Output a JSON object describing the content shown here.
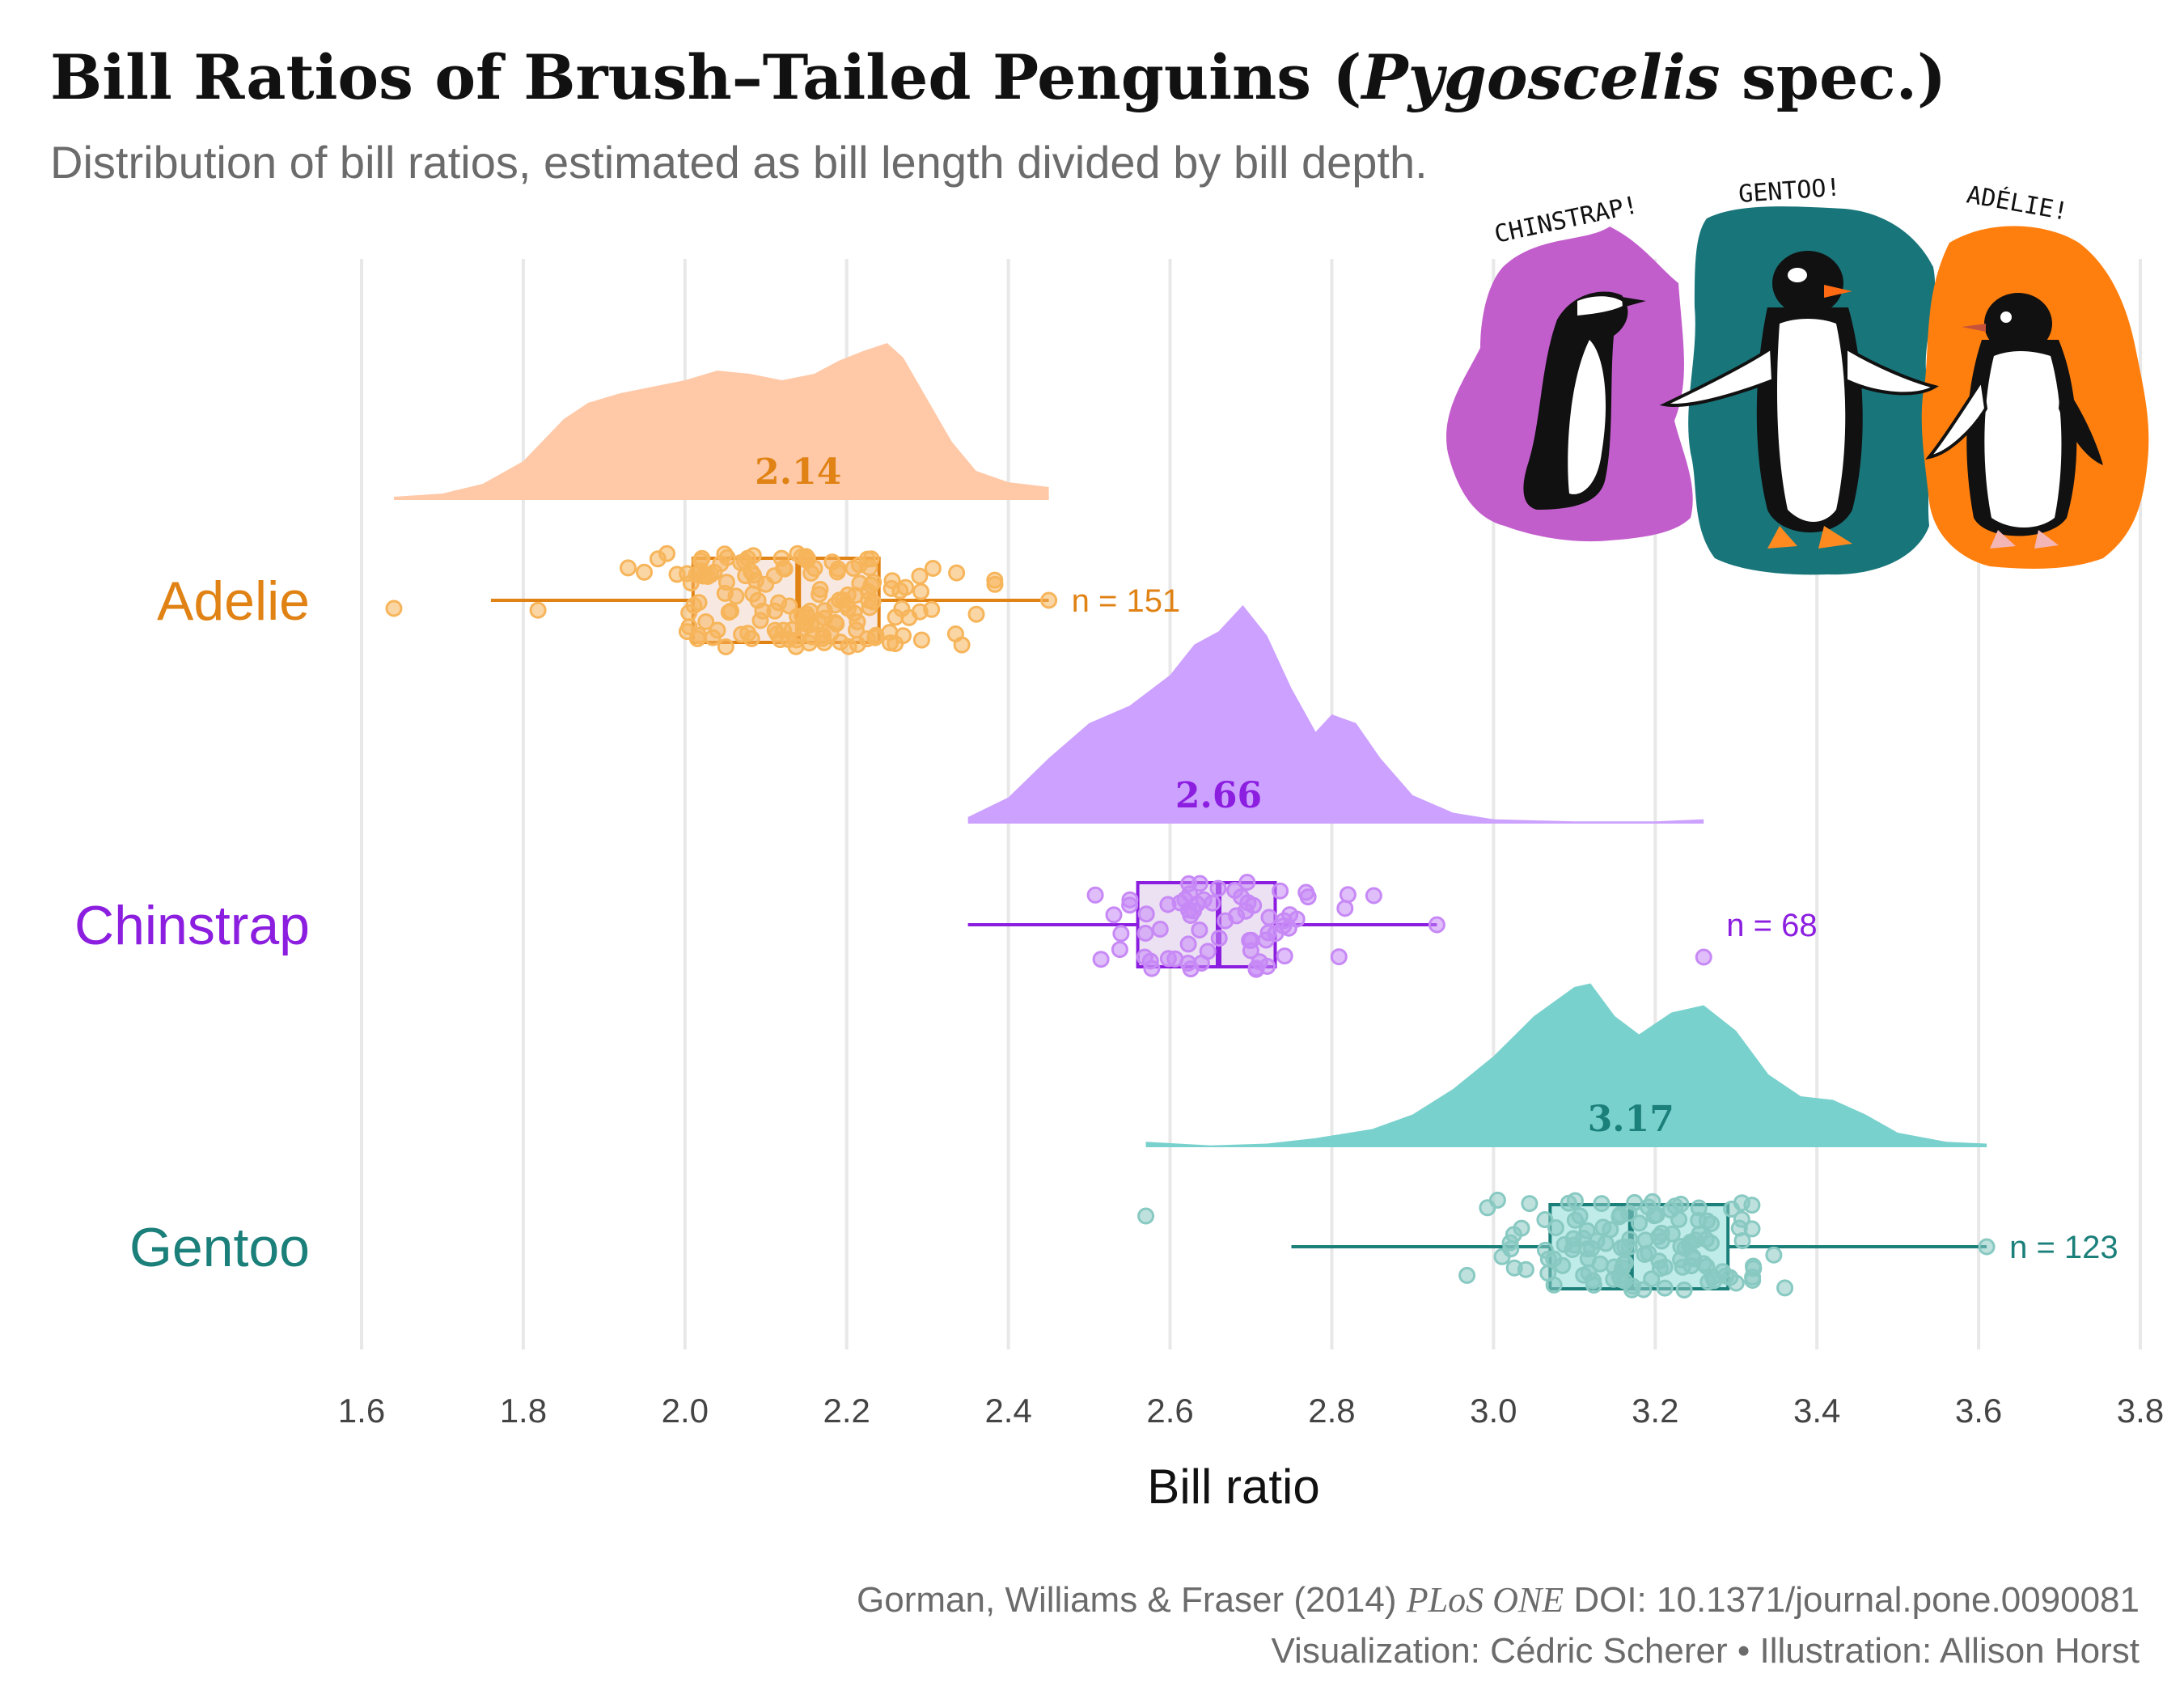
{
  "title": {
    "prefix": "Bill Ratios of Brush–Tailed Penguins (",
    "italic": "Pygoscelis",
    "suffix": " spec.)"
  },
  "subtitle": "Distribution of bill ratios, estimated as bill length divided by bill depth.",
  "caption": {
    "line1_a": "Gorman, Williams & Fraser (2014) ",
    "line1_italic": "PLoS ONE",
    "line1_b": " DOI: 10.1371/journal.pone.0090081",
    "line2": "Visualization: Cédric Scherer • Illustration: Allison Horst"
  },
  "illustration": {
    "signs": [
      "CHINSTRAP!",
      "GENTOO!",
      "ADÉLIE!"
    ],
    "colors": {
      "chinstrap": "#c25ecc",
      "gentoo": "#18757a",
      "adelie": "#ff7f0e"
    }
  },
  "chart_data": {
    "type": "raincloud",
    "xlabel": "Bill ratio",
    "xlim": [
      1.6,
      3.8
    ],
    "xticks": [
      "1.6",
      "1.8",
      "2.0",
      "2.2",
      "2.4",
      "2.6",
      "2.8",
      "3.0",
      "3.2",
      "3.4",
      "3.6",
      "3.8"
    ],
    "grid": "vertical major gridlines",
    "series": [
      {
        "name": "Adelie",
        "color": "#e08214",
        "light": "#ffc9a8",
        "point_color": "#f7b55b",
        "box_fill": "#f7e9e2",
        "median_label": "2.14",
        "n_label": "n = 151",
        "n": 151,
        "median": 2.14,
        "q1": 2.01,
        "q3": 2.24,
        "whisker_low": 1.76,
        "whisker_high": 2.45,
        "outliers": [
          1.64
        ],
        "density_range": [
          1.64,
          2.45
        ],
        "density": [
          [
            1.64,
            0.02
          ],
          [
            1.7,
            0.04
          ],
          [
            1.75,
            0.1
          ],
          [
            1.8,
            0.24
          ],
          [
            1.85,
            0.5
          ],
          [
            1.88,
            0.6
          ],
          [
            1.92,
            0.66
          ],
          [
            1.96,
            0.7
          ],
          [
            2.0,
            0.74
          ],
          [
            2.04,
            0.8
          ],
          [
            2.08,
            0.78
          ],
          [
            2.12,
            0.74
          ],
          [
            2.16,
            0.78
          ],
          [
            2.19,
            0.86
          ],
          [
            2.22,
            0.92
          ],
          [
            2.25,
            0.97
          ],
          [
            2.27,
            0.88
          ],
          [
            2.3,
            0.62
          ],
          [
            2.33,
            0.36
          ],
          [
            2.36,
            0.18
          ],
          [
            2.4,
            0.11
          ],
          [
            2.45,
            0.08
          ]
        ]
      },
      {
        "name": "Chinstrap",
        "color": "#8c1ee0",
        "light": "#cca1ff",
        "point_color": "#c789f5",
        "box_fill": "#ece0f3",
        "median_label": "2.66",
        "n_label": "n = 68",
        "n": 68,
        "median": 2.66,
        "q1": 2.56,
        "q3": 2.73,
        "whisker_low": 2.35,
        "whisker_high": 2.93,
        "outliers": [
          3.26
        ],
        "density_range": [
          2.35,
          3.26
        ],
        "density": [
          [
            2.35,
            0.03
          ],
          [
            2.4,
            0.12
          ],
          [
            2.45,
            0.3
          ],
          [
            2.5,
            0.46
          ],
          [
            2.55,
            0.54
          ],
          [
            2.6,
            0.68
          ],
          [
            2.63,
            0.82
          ],
          [
            2.66,
            0.88
          ],
          [
            2.69,
            1.0
          ],
          [
            2.72,
            0.86
          ],
          [
            2.75,
            0.62
          ],
          [
            2.78,
            0.42
          ],
          [
            2.8,
            0.5
          ],
          [
            2.83,
            0.46
          ],
          [
            2.86,
            0.3
          ],
          [
            2.9,
            0.13
          ],
          [
            2.95,
            0.05
          ],
          [
            3.0,
            0.02
          ],
          [
            3.1,
            0.01
          ],
          [
            3.2,
            0.01
          ],
          [
            3.26,
            0.02
          ]
        ]
      },
      {
        "name": "Gentoo",
        "color": "#1b7f7a",
        "light": "#79d1cd",
        "point_color": "#88c9c2",
        "box_fill": "#bfebe8",
        "median_label": "3.17",
        "n_label": "n = 123",
        "n": 123,
        "median": 3.17,
        "q1": 3.07,
        "q3": 3.29,
        "whisker_low": 2.75,
        "whisker_high": 3.61,
        "outliers": [
          2.57
        ],
        "density_range": [
          2.57,
          3.61
        ],
        "density": [
          [
            2.57,
            0.03
          ],
          [
            2.65,
            0.01
          ],
          [
            2.72,
            0.02
          ],
          [
            2.78,
            0.05
          ],
          [
            2.85,
            0.1
          ],
          [
            2.9,
            0.18
          ],
          [
            2.95,
            0.32
          ],
          [
            3.0,
            0.5
          ],
          [
            3.05,
            0.72
          ],
          [
            3.1,
            0.88
          ],
          [
            3.12,
            0.9
          ],
          [
            3.15,
            0.72
          ],
          [
            3.18,
            0.62
          ],
          [
            3.22,
            0.74
          ],
          [
            3.26,
            0.78
          ],
          [
            3.3,
            0.64
          ],
          [
            3.34,
            0.4
          ],
          [
            3.38,
            0.28
          ],
          [
            3.42,
            0.26
          ],
          [
            3.46,
            0.18
          ],
          [
            3.5,
            0.08
          ],
          [
            3.56,
            0.03
          ],
          [
            3.61,
            0.02
          ]
        ]
      }
    ]
  }
}
